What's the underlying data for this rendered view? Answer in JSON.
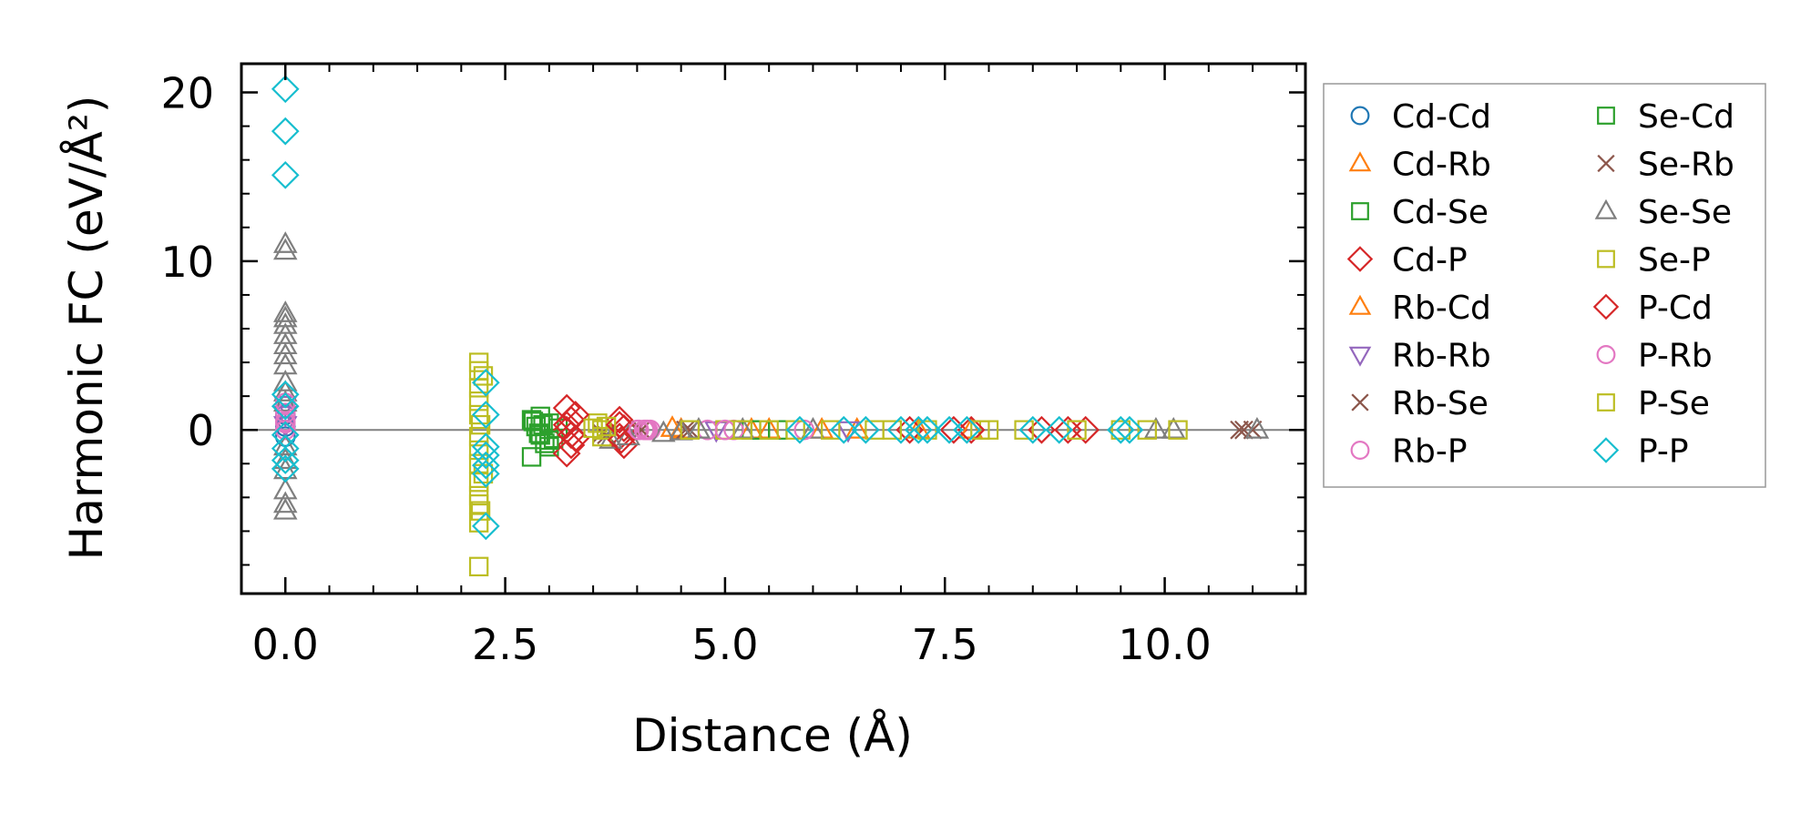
{
  "chart_data": {
    "type": "scatter",
    "title": "",
    "xlabel": "Distance (Å)",
    "ylabel": "Harmonic FC (eV/Å²)",
    "xlim": [
      -0.5,
      11.6
    ],
    "ylim": [
      -9.7,
      21.7
    ],
    "xticks": [
      0.0,
      2.5,
      5.0,
      7.5,
      10.0
    ],
    "xtick_labels": [
      "0.0",
      "2.5",
      "5.0",
      "7.5",
      "10.0"
    ],
    "yticks": [
      0,
      10,
      20
    ],
    "ytick_labels": [
      "0",
      "10",
      "20"
    ],
    "x_minor_step": 0.5,
    "y_minor_step": 2,
    "zero_line": true,
    "legend_location": "outside-right",
    "legend_columns": 2,
    "series": [
      {
        "name": "Cd-Cd",
        "marker": "circle",
        "color": "#1f77b4",
        "points": [
          [
            0.0,
            0.9
          ],
          [
            0.0,
            -0.4
          ],
          [
            0.0,
            0.2
          ]
        ]
      },
      {
        "name": "Cd-Rb",
        "marker": "triangle-up",
        "color": "#ff7f0e",
        "points": [
          [
            4.4,
            0.1
          ],
          [
            5.3,
            0.0
          ],
          [
            6.1,
            0.0
          ],
          [
            7.2,
            0.0
          ]
        ]
      },
      {
        "name": "Cd-Se",
        "marker": "square",
        "color": "#2ca02c",
        "points": [
          [
            2.8,
            0.6
          ],
          [
            2.85,
            0.2
          ],
          [
            2.9,
            -0.3
          ],
          [
            2.95,
            -0.8
          ],
          [
            3.0,
            0.4
          ],
          [
            3.05,
            -0.5
          ],
          [
            2.8,
            -1.6
          ],
          [
            3.1,
            0.1
          ],
          [
            2.9,
            0.8
          ],
          [
            3.0,
            -1.0
          ],
          [
            5.3,
            0.0
          ],
          [
            5.6,
            0.0
          ]
        ]
      },
      {
        "name": "Cd-P",
        "marker": "diamond",
        "color": "#d62728",
        "points": [
          [
            3.2,
            1.3
          ],
          [
            3.25,
            0.6
          ],
          [
            3.2,
            0.0
          ],
          [
            3.3,
            -0.5
          ],
          [
            3.2,
            -1.4
          ],
          [
            3.25,
            -0.9
          ],
          [
            3.8,
            0.6
          ],
          [
            3.85,
            0.1
          ],
          [
            3.8,
            -0.4
          ],
          [
            3.85,
            -0.9
          ],
          [
            7.1,
            0.0
          ],
          [
            7.6,
            0.0
          ],
          [
            9.1,
            0.0
          ]
        ]
      },
      {
        "name": "Rb-Cd",
        "marker": "triangle-up",
        "color": "#ff7f0e",
        "points": [
          [
            4.5,
            0.0
          ],
          [
            5.5,
            0.0
          ],
          [
            6.5,
            0.0
          ],
          [
            7.8,
            0.0
          ]
        ]
      },
      {
        "name": "Rb-Rb",
        "marker": "triangle-down",
        "color": "#9467bd",
        "points": [
          [
            0.0,
            0.9
          ],
          [
            0.0,
            0.3
          ],
          [
            0.0,
            1.5
          ],
          [
            4.9,
            0.0
          ],
          [
            6.4,
            0.0
          ]
        ]
      },
      {
        "name": "Rb-Se",
        "marker": "x",
        "color": "#8c564b",
        "points": [
          [
            3.6,
            -0.2
          ],
          [
            4.0,
            0.0
          ],
          [
            4.6,
            0.0
          ],
          [
            10.9,
            0.0
          ],
          [
            11.0,
            0.0
          ]
        ]
      },
      {
        "name": "Rb-P",
        "marker": "circle",
        "color": "#e377c2",
        "points": [
          [
            0.0,
            0.5
          ],
          [
            0.0,
            0.0
          ],
          [
            0.0,
            1.0
          ],
          [
            4.0,
            0.0
          ],
          [
            4.1,
            0.0
          ],
          [
            4.15,
            0.0
          ],
          [
            4.8,
            0.0
          ],
          [
            5.1,
            0.0
          ]
        ]
      },
      {
        "name": "Se-Cd",
        "marker": "square",
        "color": "#2ca02c",
        "points": [
          [
            2.82,
            0.5
          ],
          [
            2.88,
            -0.2
          ],
          [
            2.93,
            0.3
          ],
          [
            3.0,
            -0.6
          ],
          [
            5.4,
            0.0
          ]
        ]
      },
      {
        "name": "Se-Rb",
        "marker": "x",
        "color": "#8c564b",
        "points": [
          [
            3.65,
            -0.3
          ],
          [
            4.05,
            0.0
          ],
          [
            4.55,
            0.0
          ],
          [
            10.85,
            0.0
          ]
        ]
      },
      {
        "name": "Se-Se",
        "marker": "triangle-up",
        "color": "#7f7f7f",
        "points": [
          [
            0.0,
            11.0
          ],
          [
            0.0,
            10.6
          ],
          [
            0.0,
            6.9
          ],
          [
            0.0,
            6.6
          ],
          [
            0.0,
            6.2
          ],
          [
            0.0,
            5.6
          ],
          [
            0.0,
            5.0
          ],
          [
            0.0,
            4.4
          ],
          [
            0.0,
            3.8
          ],
          [
            0.0,
            2.8
          ],
          [
            0.0,
            2.2
          ],
          [
            0.0,
            1.6
          ],
          [
            0.0,
            -1.0
          ],
          [
            0.0,
            -1.8
          ],
          [
            0.0,
            -2.4
          ],
          [
            0.0,
            -3.6
          ],
          [
            0.0,
            -4.4
          ],
          [
            0.0,
            -4.8
          ],
          [
            3.7,
            -0.6
          ],
          [
            3.9,
            -0.4
          ],
          [
            4.3,
            -0.2
          ],
          [
            4.5,
            -0.1
          ],
          [
            4.7,
            0.0
          ],
          [
            5.2,
            0.0
          ],
          [
            6.0,
            0.0
          ],
          [
            9.9,
            0.0
          ],
          [
            10.1,
            0.0
          ],
          [
            11.05,
            0.0
          ]
        ]
      },
      {
        "name": "Se-P",
        "marker": "square",
        "color": "#bcbd22",
        "points": [
          [
            2.2,
            4.0
          ],
          [
            2.2,
            3.5
          ],
          [
            2.2,
            2.5
          ],
          [
            2.2,
            1.7
          ],
          [
            2.2,
            0.9
          ],
          [
            2.2,
            -0.4
          ],
          [
            2.2,
            -1.2
          ],
          [
            2.2,
            -2.0
          ],
          [
            2.2,
            -3.1
          ],
          [
            2.2,
            -3.9
          ],
          [
            2.2,
            -4.4
          ],
          [
            2.2,
            -5.5
          ],
          [
            2.2,
            -8.1
          ],
          [
            3.55,
            0.4
          ],
          [
            3.6,
            -0.4
          ],
          [
            3.6,
            0.0
          ],
          [
            4.6,
            0.0
          ],
          [
            5.0,
            0.0
          ],
          [
            6.9,
            0.0
          ],
          [
            8.0,
            0.0
          ],
          [
            9.8,
            0.0
          ],
          [
            10.15,
            0.0
          ]
        ]
      },
      {
        "name": "P-Cd",
        "marker": "diamond",
        "color": "#d62728",
        "points": [
          [
            3.3,
            0.9
          ],
          [
            3.2,
            0.3
          ],
          [
            3.25,
            -0.3
          ],
          [
            3.8,
            0.3
          ],
          [
            3.82,
            -0.6
          ],
          [
            7.8,
            0.0
          ],
          [
            8.6,
            0.0
          ],
          [
            8.9,
            0.0
          ]
        ]
      },
      {
        "name": "P-Rb",
        "marker": "circle",
        "color": "#e377c2",
        "points": [
          [
            0.0,
            0.4
          ],
          [
            0.0,
            1.6
          ],
          [
            4.02,
            0.0
          ],
          [
            4.08,
            0.0
          ],
          [
            4.12,
            0.0
          ],
          [
            5.0,
            0.0
          ],
          [
            5.9,
            0.0
          ]
        ]
      },
      {
        "name": "P-Se",
        "marker": "square",
        "color": "#bcbd22",
        "points": [
          [
            2.25,
            3.2
          ],
          [
            2.22,
            0.3
          ],
          [
            2.25,
            -2.6
          ],
          [
            2.22,
            -4.8
          ],
          [
            3.5,
            0.1
          ],
          [
            3.65,
            0.2
          ],
          [
            5.2,
            0.0
          ],
          [
            5.5,
            0.0
          ],
          [
            5.8,
            0.0
          ],
          [
            6.2,
            0.0
          ],
          [
            6.7,
            0.0
          ],
          [
            7.3,
            0.0
          ],
          [
            7.9,
            0.0
          ],
          [
            8.4,
            0.0
          ],
          [
            9.0,
            0.0
          ],
          [
            9.5,
            0.0
          ]
        ]
      },
      {
        "name": "P-P",
        "marker": "diamond",
        "color": "#17becf",
        "points": [
          [
            0.0,
            20.2
          ],
          [
            0.0,
            17.7
          ],
          [
            0.0,
            15.1
          ],
          [
            0.0,
            2.1
          ],
          [
            0.0,
            1.4
          ],
          [
            0.0,
            -0.3
          ],
          [
            0.0,
            -1.1
          ],
          [
            0.0,
            -1.8
          ],
          [
            0.0,
            -2.3
          ],
          [
            2.28,
            2.8
          ],
          [
            2.28,
            0.9
          ],
          [
            2.28,
            -1.0
          ],
          [
            2.28,
            -1.5
          ],
          [
            2.28,
            -2.1
          ],
          [
            2.28,
            -2.6
          ],
          [
            2.28,
            -5.7
          ],
          [
            5.85,
            0.0
          ],
          [
            6.35,
            0.0
          ],
          [
            6.6,
            0.0
          ],
          [
            7.0,
            0.0
          ],
          [
            7.2,
            0.0
          ],
          [
            7.3,
            0.0
          ],
          [
            7.55,
            0.0
          ],
          [
            7.75,
            0.0
          ],
          [
            8.5,
            0.0
          ],
          [
            8.8,
            0.0
          ],
          [
            9.5,
            0.0
          ],
          [
            9.6,
            0.0
          ]
        ]
      }
    ]
  }
}
